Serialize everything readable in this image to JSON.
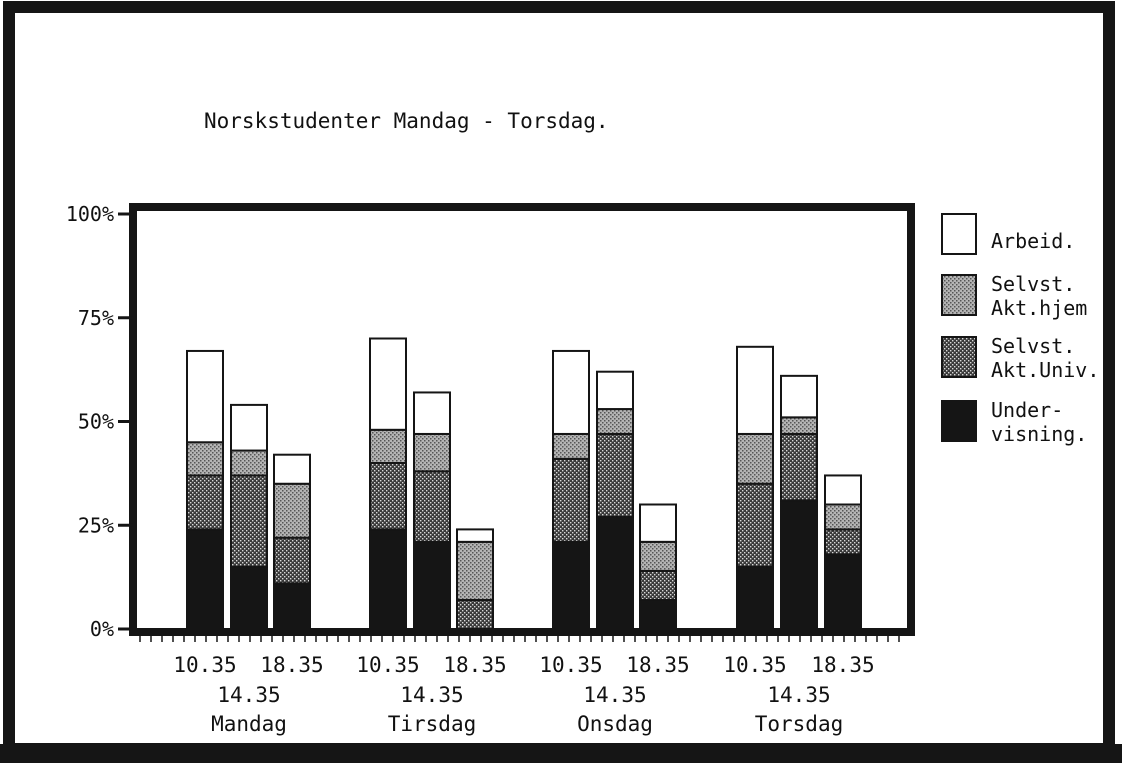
{
  "chart_data": {
    "type": "bar",
    "stacked": true,
    "title": "Norskstudenter Mandag - Torsdag.",
    "y_tick_labels": [
      "0%",
      "25%",
      "50%",
      "75%",
      "100%"
    ],
    "ylim": [
      0,
      100
    ],
    "grid": false,
    "legend_position": "right",
    "groups": [
      {
        "day": "Mandag",
        "times": [
          "10.35",
          "14.35",
          "18.35"
        ]
      },
      {
        "day": "Tirsdag",
        "times": [
          "10.35",
          "14.35",
          "18.35"
        ]
      },
      {
        "day": "Onsdag",
        "times": [
          "10.35",
          "14.35",
          "18.35"
        ]
      },
      {
        "day": "Torsdag",
        "times": [
          "10.35",
          "14.35",
          "18.35"
        ]
      }
    ],
    "series": [
      {
        "name": "Under- visning.",
        "legend_lines": [
          "Under-",
          "visning."
        ],
        "pattern": "solid-black",
        "values": [
          24,
          15,
          11,
          24,
          21,
          0,
          21,
          27,
          7,
          15,
          31,
          18
        ]
      },
      {
        "name": "Selvst. Akt.Univ.",
        "legend_lines": [
          "Selvst.",
          "Akt.Univ."
        ],
        "pattern": "dark-dots",
        "values": [
          13,
          22,
          11,
          16,
          17,
          7,
          20,
          20,
          7,
          20,
          16,
          6
        ]
      },
      {
        "name": "Selvst. Akt.hjem",
        "legend_lines": [
          "Selvst.",
          "Akt.hjem"
        ],
        "pattern": "light-dots",
        "values": [
          8,
          6,
          13,
          8,
          9,
          14,
          6,
          6,
          7,
          12,
          4,
          6
        ]
      },
      {
        "name": "Arbeid.",
        "legend_lines": [
          "Arbeid."
        ],
        "pattern": "white",
        "values": [
          22,
          11,
          7,
          22,
          10,
          3,
          20,
          9,
          9,
          21,
          10,
          7
        ]
      }
    ]
  }
}
